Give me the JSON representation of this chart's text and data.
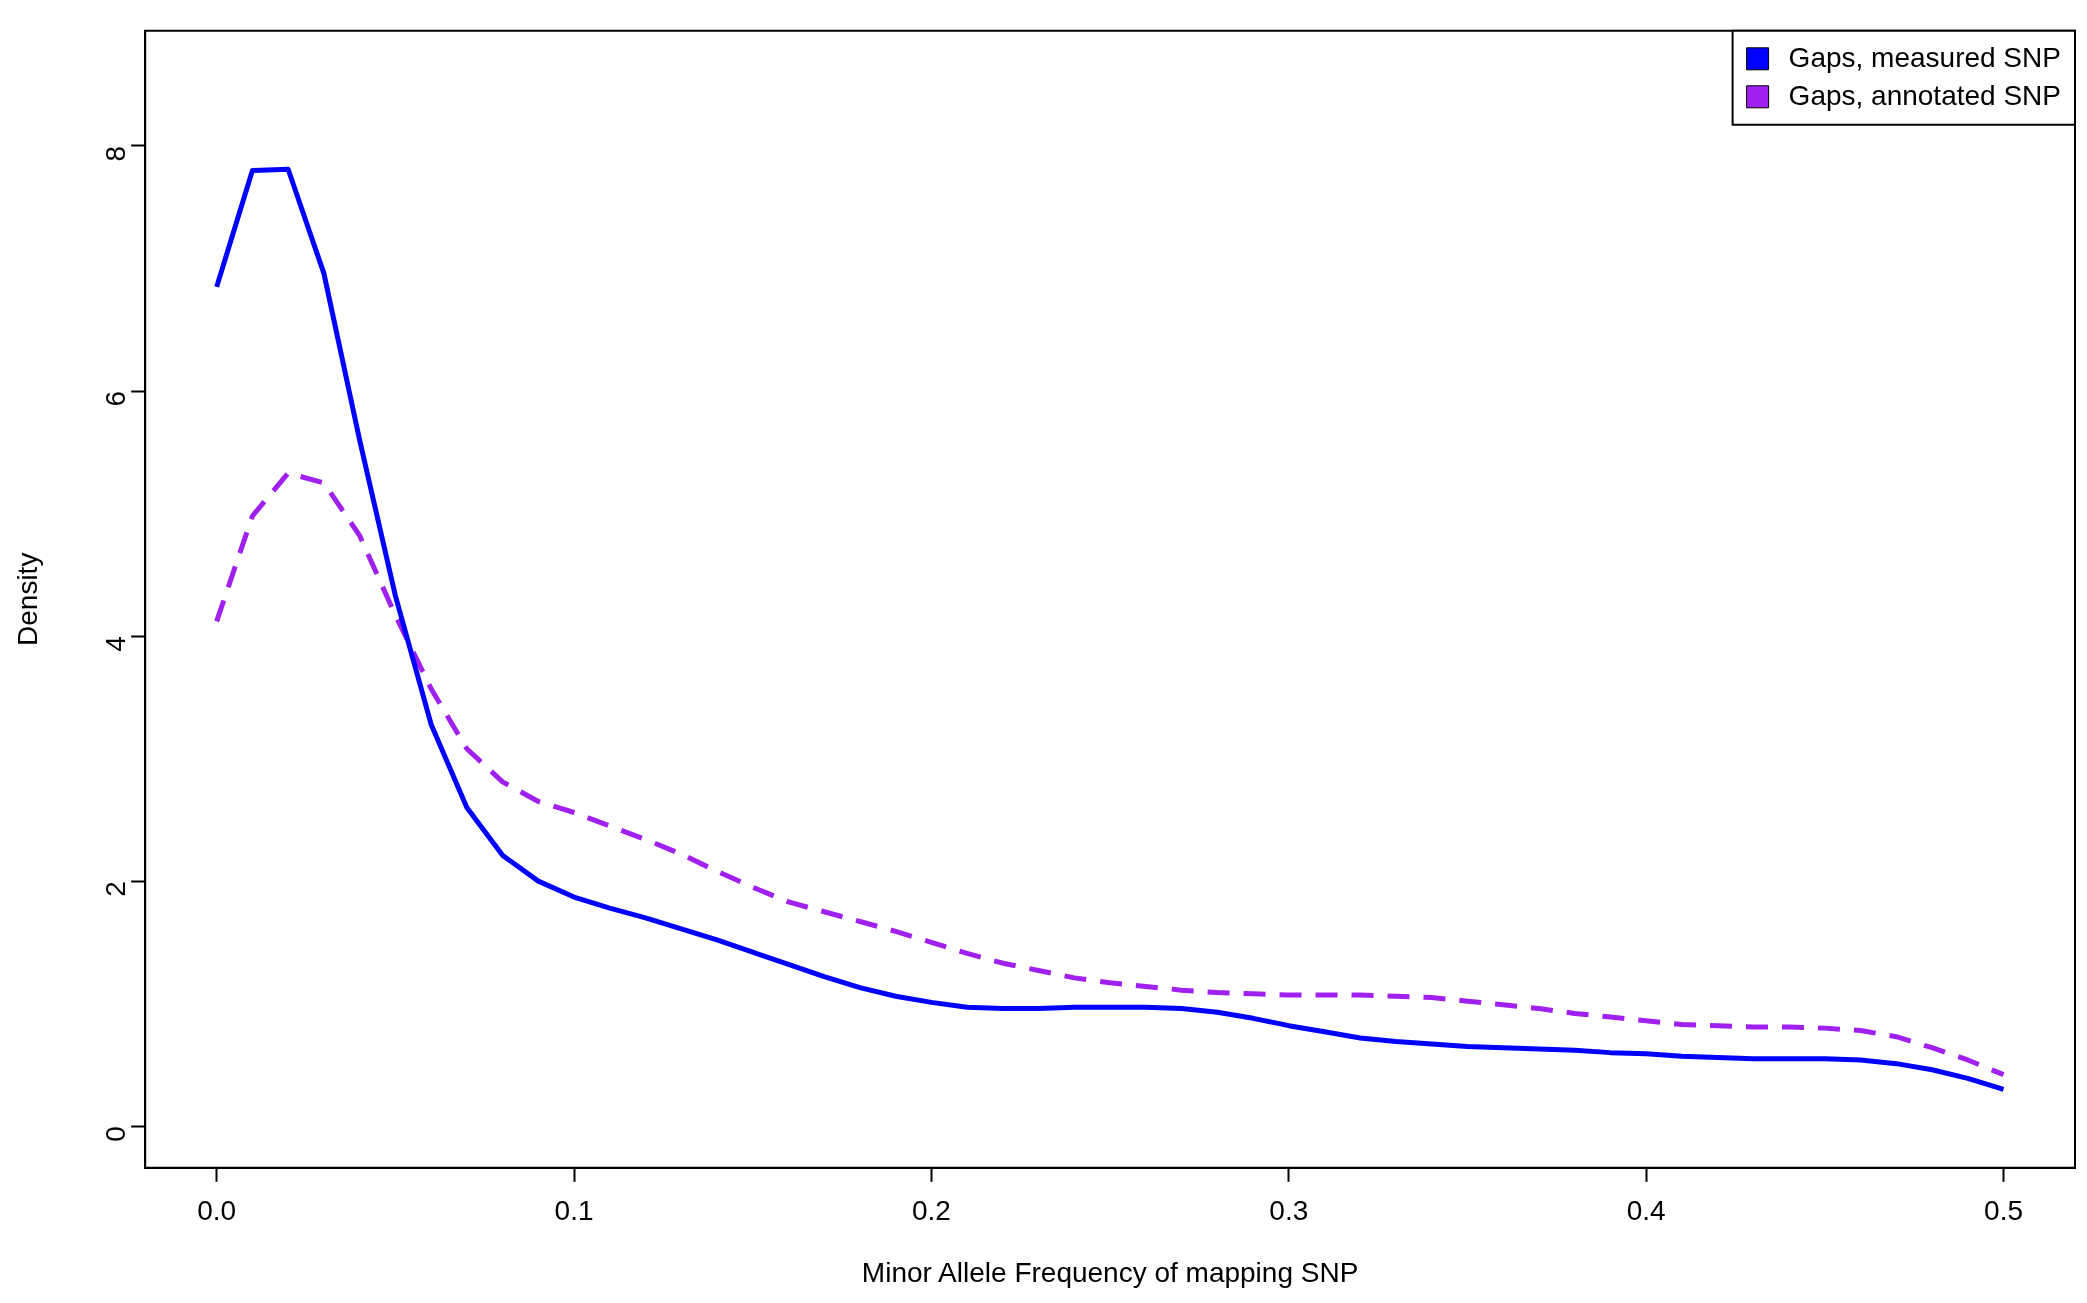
{
  "chart_data": {
    "type": "line",
    "xlabel": "Minor Allele Frequency of mapping SNP",
    "ylabel": "Density",
    "x": [
      0,
      0.01,
      0.02,
      0.03,
      0.04,
      0.05,
      0.06,
      0.07,
      0.08,
      0.09,
      0.1,
      0.11,
      0.12,
      0.13,
      0.14,
      0.15,
      0.16,
      0.17,
      0.18,
      0.19,
      0.2,
      0.21,
      0.22,
      0.23,
      0.24,
      0.25,
      0.26,
      0.27,
      0.28,
      0.29,
      0.3,
      0.31,
      0.32,
      0.33,
      0.34,
      0.35,
      0.36,
      0.37,
      0.38,
      0.39,
      0.4,
      0.41,
      0.42,
      0.43,
      0.44,
      0.45,
      0.46,
      0.47,
      0.48,
      0.49,
      0.5
    ],
    "series": [
      {
        "name": "Gaps, measured SNP",
        "color": "#0000ff",
        "line_style": "solid",
        "values": [
          6.85,
          7.8,
          7.81,
          6.96,
          5.6,
          4.33,
          3.28,
          2.6,
          2.21,
          2.0,
          1.87,
          1.78,
          1.7,
          1.61,
          1.52,
          1.42,
          1.32,
          1.22,
          1.13,
          1.06,
          1.01,
          0.97,
          0.96,
          0.96,
          0.97,
          0.97,
          0.97,
          0.96,
          0.93,
          0.88,
          0.82,
          0.77,
          0.72,
          0.69,
          0.67,
          0.65,
          0.64,
          0.63,
          0.62,
          0.6,
          0.59,
          0.57,
          0.56,
          0.55,
          0.55,
          0.55,
          0.54,
          0.51,
          0.46,
          0.39,
          0.3
        ]
      },
      {
        "name": "Gaps, annotated SNP",
        "color": "#a020f0",
        "line_style": "dashed",
        "values": [
          4.12,
          4.98,
          5.33,
          5.25,
          4.82,
          4.17,
          3.57,
          3.08,
          2.81,
          2.65,
          2.56,
          2.45,
          2.34,
          2.22,
          2.08,
          1.95,
          1.83,
          1.75,
          1.67,
          1.59,
          1.5,
          1.41,
          1.33,
          1.27,
          1.21,
          1.17,
          1.14,
          1.11,
          1.09,
          1.08,
          1.07,
          1.07,
          1.07,
          1.06,
          1.05,
          1.02,
          0.99,
          0.96,
          0.92,
          0.89,
          0.86,
          0.83,
          0.82,
          0.81,
          0.81,
          0.8,
          0.78,
          0.73,
          0.64,
          0.54,
          0.42
        ]
      }
    ],
    "xlim": [
      -0.02,
      0.52
    ],
    "xticks": [
      {
        "value": 0,
        "label": "0.0"
      },
      0.1,
      0.2,
      0.3,
      0.4,
      0.5
    ],
    "ylim": [
      -0.34,
      8.94
    ],
    "yticks": [
      0,
      2,
      4,
      6,
      8
    ],
    "grid": false,
    "legend": "top right",
    "marker": "none"
  }
}
